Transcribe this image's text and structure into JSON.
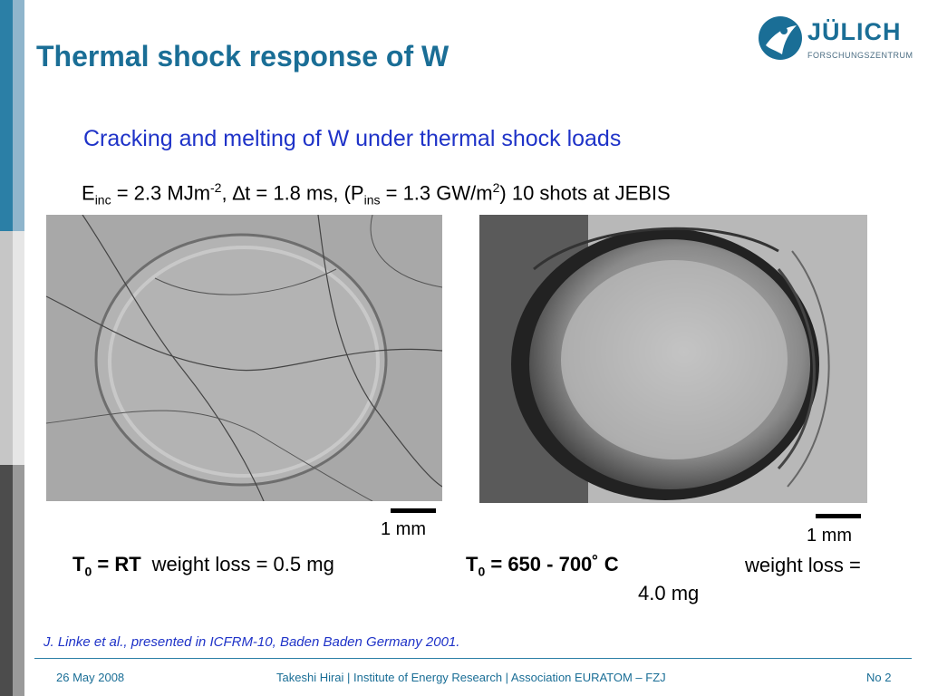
{
  "slide": {
    "title": "Thermal shock response of W",
    "subtitle": "Cracking and melting of W under thermal shock loads"
  },
  "logo": {
    "name": "JÜLICH",
    "sub": "FORSCHUNGSZENTRUM",
    "color": "#1a6e96"
  },
  "params": {
    "e": "E",
    "e_sub": "inc",
    "e_val": " = 2.3  MJm",
    "e_exp": "-2",
    "dt": ", ∆t = 1.8 ms, (P",
    "p_sub": "ins",
    "p_val": " = 1.3 GW/m",
    "p_exp": "2",
    "tail": ") 10 shots at JEBIS"
  },
  "samples": [
    {
      "scale_label": "1 mm",
      "t0": "T",
      "t0_sub": "0",
      "t0_val": " = RT",
      "weight_loss": "weight loss = 0.5 mg"
    },
    {
      "scale_label": "1 mm",
      "t0": "T",
      "t0_sub": "0",
      "t0_val": " = 650 - 700˚  C",
      "weight_loss_line1": "weight loss =",
      "weight_loss_line2": "4.0 mg"
    }
  ],
  "reference": "J. Linke et al., presented in ICFRM-10, Baden Baden Germany 2001.",
  "footer": {
    "date": "26 May 2008",
    "center": "Takeshi Hirai | Institute of Energy Research | Association EURATOM – FZJ",
    "page": "No 2"
  },
  "colors": {
    "title": "#1a6e96",
    "subtitle": "#1f33c8",
    "sidebar_top": "#2b7fa6"
  }
}
